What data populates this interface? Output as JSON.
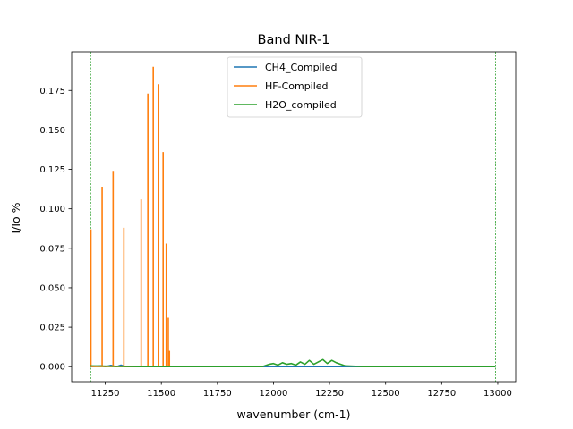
{
  "chart_data": {
    "type": "line",
    "title": "Band NIR-1",
    "xlabel": "wavenumber (cm-1)",
    "ylabel": "I/Io %",
    "xlim": [
      11100,
      13080
    ],
    "ylim": [
      -0.0095,
      0.1995
    ],
    "x_ticks": [
      11250,
      11500,
      11750,
      12000,
      12250,
      12500,
      12750,
      13000
    ],
    "x_tick_labels": [
      "11250",
      "11500",
      "11750",
      "12000",
      "12250",
      "12500",
      "12750",
      "13000"
    ],
    "y_ticks": [
      0.0,
      0.025,
      0.05,
      0.075,
      0.1,
      0.125,
      0.15,
      0.175
    ],
    "y_tick_labels": [
      "0.000",
      "0.025",
      "0.050",
      "0.075",
      "0.100",
      "0.125",
      "0.150",
      "0.175"
    ],
    "grid": false,
    "legend_position": "upper center",
    "band_limits": [
      11185,
      12990
    ],
    "band_limit_color": "#2ca02c",
    "series": [
      {
        "name": "CH4_Compiled",
        "color": "#1f77b4",
        "points": [
          [
            11180,
            0.0
          ],
          [
            11230,
            0.0005
          ],
          [
            11250,
            0.0
          ],
          [
            11275,
            0.0008
          ],
          [
            11300,
            0.0
          ],
          [
            11320,
            0.001
          ],
          [
            11340,
            0.0
          ],
          [
            12990,
            0.0
          ]
        ]
      },
      {
        "name": "HF-Compiled",
        "color": "#ff7f0e",
        "lines": [
          {
            "x": 11186,
            "y": 0.087
          },
          {
            "x": 11236,
            "y": 0.114
          },
          {
            "x": 11285,
            "y": 0.124
          },
          {
            "x": 11333,
            "y": 0.088
          },
          {
            "x": 11410,
            "y": 0.106
          },
          {
            "x": 11440,
            "y": 0.173
          },
          {
            "x": 11464,
            "y": 0.19
          },
          {
            "x": 11488,
            "y": 0.179
          },
          {
            "x": 11508,
            "y": 0.136
          },
          {
            "x": 11522,
            "y": 0.078
          },
          {
            "x": 11531,
            "y": 0.031
          },
          {
            "x": 11536,
            "y": 0.01
          }
        ]
      },
      {
        "name": "H2O_compiled",
        "color": "#2ca02c",
        "points": [
          [
            11180,
            0.0005
          ],
          [
            11400,
            0.0
          ],
          [
            11950,
            0.0
          ],
          [
            11980,
            0.0015
          ],
          [
            12000,
            0.002
          ],
          [
            12020,
            0.001
          ],
          [
            12040,
            0.0025
          ],
          [
            12060,
            0.0015
          ],
          [
            12080,
            0.002
          ],
          [
            12100,
            0.001
          ],
          [
            12120,
            0.003
          ],
          [
            12140,
            0.0015
          ],
          [
            12160,
            0.004
          ],
          [
            12180,
            0.0015
          ],
          [
            12200,
            0.003
          ],
          [
            12220,
            0.0045
          ],
          [
            12240,
            0.002
          ],
          [
            12260,
            0.004
          ],
          [
            12280,
            0.0025
          ],
          [
            12300,
            0.0015
          ],
          [
            12320,
            0.0005
          ],
          [
            12400,
            0.0
          ],
          [
            12990,
            0.0
          ]
        ]
      }
    ]
  }
}
